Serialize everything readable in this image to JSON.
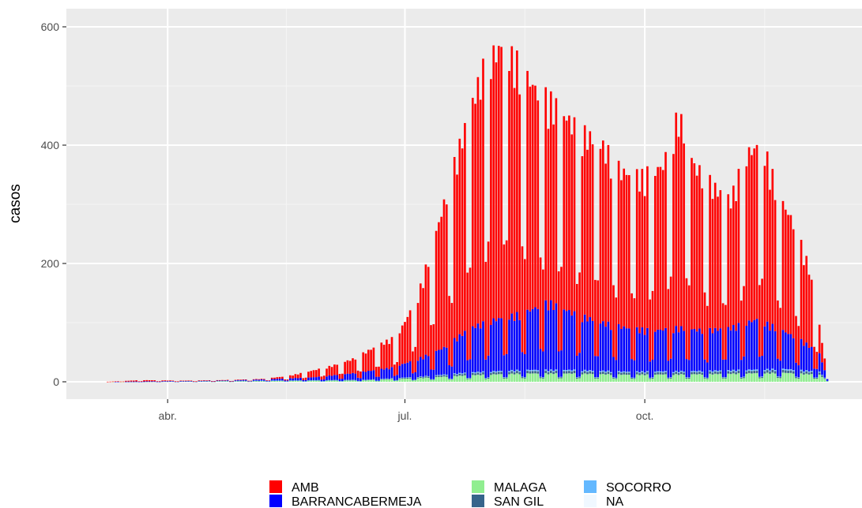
{
  "chart_data": {
    "type": "bar",
    "stacked": true,
    "title": "",
    "xlabel": "",
    "ylabel": "casos",
    "ylim": [
      -30,
      628
    ],
    "y_ticks": [
      {
        "value": 0,
        "label": "0"
      },
      {
        "value": 200,
        "label": "200"
      },
      {
        "value": 400,
        "label": "400"
      },
      {
        "value": 600,
        "label": "600"
      }
    ],
    "xlim": [
      0,
      285
    ],
    "x_ticks": [
      {
        "value": 24,
        "label": "abr."
      },
      {
        "value": 115,
        "label": "jul."
      },
      {
        "value": 207,
        "label": "oct."
      }
    ],
    "grid": true,
    "legend_position": "bottom",
    "background": "#ebebeb",
    "series_order_bottom_to_top": [
      "NA",
      "SOCORRO",
      "SAN GIL",
      "MALAGA",
      "BARRANCABERMEJA",
      "AMB"
    ],
    "legend": [
      {
        "name": "AMB",
        "color": "#ff0000"
      },
      {
        "name": "BARRANCABERMEJA",
        "color": "#0000ff"
      },
      {
        "name": "MALAGA",
        "color": "#90ee90"
      },
      {
        "name": "SAN GIL",
        "color": "#36648b"
      },
      {
        "name": "SOCORRO",
        "color": "#63b8ff"
      },
      {
        "name": "NA",
        "color": "#f0f8ff"
      }
    ],
    "total_key_points": [
      {
        "x": 0,
        "y": 0
      },
      {
        "x": 14,
        "y": 3
      },
      {
        "x": 30,
        "y": 2
      },
      {
        "x": 45,
        "y": 3
      },
      {
        "x": 60,
        "y": 5
      },
      {
        "x": 70,
        "y": 10
      },
      {
        "x": 78,
        "y": 18
      },
      {
        "x": 87,
        "y": 28
      },
      {
        "x": 95,
        "y": 40
      },
      {
        "x": 105,
        "y": 65
      },
      {
        "x": 112,
        "y": 80
      },
      {
        "x": 120,
        "y": 150
      },
      {
        "x": 128,
        "y": 280
      },
      {
        "x": 134,
        "y": 380
      },
      {
        "x": 140,
        "y": 480
      },
      {
        "x": 146,
        "y": 560
      },
      {
        "x": 152,
        "y": 590
      },
      {
        "x": 158,
        "y": 560
      },
      {
        "x": 166,
        "y": 510
      },
      {
        "x": 174,
        "y": 480
      },
      {
        "x": 182,
        "y": 440
      },
      {
        "x": 190,
        "y": 420
      },
      {
        "x": 198,
        "y": 370
      },
      {
        "x": 206,
        "y": 360
      },
      {
        "x": 214,
        "y": 380
      },
      {
        "x": 220,
        "y": 470
      },
      {
        "x": 226,
        "y": 380
      },
      {
        "x": 234,
        "y": 340
      },
      {
        "x": 240,
        "y": 320
      },
      {
        "x": 246,
        "y": 400
      },
      {
        "x": 252,
        "y": 420
      },
      {
        "x": 258,
        "y": 330
      },
      {
        "x": 264,
        "y": 280
      },
      {
        "x": 270,
        "y": 200
      },
      {
        "x": 274,
        "y": 100
      },
      {
        "x": 276,
        "y": 40
      },
      {
        "x": 277,
        "y": 5
      }
    ],
    "blue_key_points": [
      {
        "x": 0,
        "y": 0
      },
      {
        "x": 40,
        "y": 2
      },
      {
        "x": 60,
        "y": 4
      },
      {
        "x": 80,
        "y": 8
      },
      {
        "x": 95,
        "y": 15
      },
      {
        "x": 110,
        "y": 25
      },
      {
        "x": 120,
        "y": 40
      },
      {
        "x": 130,
        "y": 60
      },
      {
        "x": 140,
        "y": 95
      },
      {
        "x": 150,
        "y": 110
      },
      {
        "x": 160,
        "y": 120
      },
      {
        "x": 170,
        "y": 140
      },
      {
        "x": 180,
        "y": 120
      },
      {
        "x": 190,
        "y": 105
      },
      {
        "x": 200,
        "y": 95
      },
      {
        "x": 210,
        "y": 90
      },
      {
        "x": 220,
        "y": 95
      },
      {
        "x": 230,
        "y": 90
      },
      {
        "x": 240,
        "y": 95
      },
      {
        "x": 250,
        "y": 110
      },
      {
        "x": 260,
        "y": 90
      },
      {
        "x": 268,
        "y": 70
      },
      {
        "x": 274,
        "y": 50
      },
      {
        "x": 277,
        "y": 5
      }
    ],
    "green_key_points": [
      {
        "x": 0,
        "y": 0
      },
      {
        "x": 100,
        "y": 6
      },
      {
        "x": 120,
        "y": 15
      },
      {
        "x": 140,
        "y": 28
      },
      {
        "x": 160,
        "y": 35
      },
      {
        "x": 180,
        "y": 35
      },
      {
        "x": 200,
        "y": 30
      },
      {
        "x": 230,
        "y": 32
      },
      {
        "x": 260,
        "y": 38
      },
      {
        "x": 274,
        "y": 30
      },
      {
        "x": 277,
        "y": 3
      }
    ]
  }
}
